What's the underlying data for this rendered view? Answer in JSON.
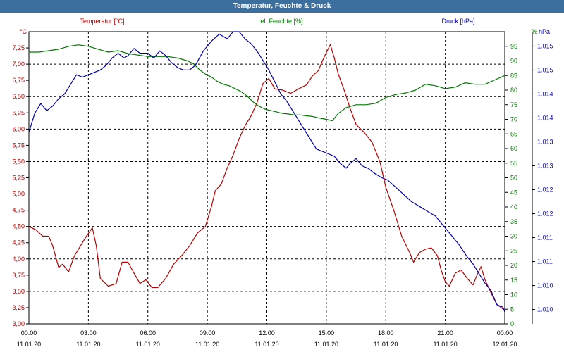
{
  "window": {
    "title": "Temperatur, Feuchte & Druck"
  },
  "colors": {
    "temperature": "#b40000",
    "humidity": "#007800",
    "pressure": "#0000aa",
    "grid": "#000000",
    "title_bar": "#3c6e9e"
  },
  "chart_data": {
    "type": "line",
    "title": "Temperatur, Feuchte & Druck",
    "legend": [
      {
        "key": "temperature",
        "label": "Temperatur [°C]"
      },
      {
        "key": "humidity",
        "label": "rel. Feuchte [%]"
      },
      {
        "key": "pressure",
        "label": "Druck [hPa]"
      }
    ],
    "x_axis": {
      "range_hours": [
        0,
        24
      ],
      "ticks": [
        {
          "h": 0,
          "time": "00:00",
          "date": "11.01.20"
        },
        {
          "h": 3,
          "time": "03:00",
          "date": "11.01.20"
        },
        {
          "h": 6,
          "time": "06:00",
          "date": "11.01.20"
        },
        {
          "h": 9,
          "time": "09:00",
          "date": "11.01.20"
        },
        {
          "h": 12,
          "time": "12:00",
          "date": "11.01.20"
        },
        {
          "h": 15,
          "time": "15:00",
          "date": "11.01.20"
        },
        {
          "h": 18,
          "time": "18:00",
          "date": "11.01.20"
        },
        {
          "h": 21,
          "time": "21:00",
          "date": "11.01.20"
        },
        {
          "h": 24,
          "time": "00:00",
          "date": "12.01.20"
        }
      ]
    },
    "left_axis": {
      "unit": "°C",
      "range": [
        3.0,
        7.5
      ],
      "ticks": [
        "3,00",
        "3,25",
        "3,50",
        "3,75",
        "4,00",
        "4,25",
        "4,50",
        "4,75",
        "5,00",
        "5,25",
        "5,50",
        "5,75",
        "6,00",
        "6,25",
        "6,50",
        "6,75",
        "7,00",
        "7,25"
      ]
    },
    "mid_axis": {
      "unit": "%",
      "range": [
        0,
        100
      ],
      "ticks": [
        "0",
        "5",
        "10",
        "15",
        "20",
        "25",
        "30",
        "35",
        "40",
        "45",
        "50",
        "55",
        "60",
        "65",
        "70",
        "75",
        "80",
        "85",
        "90",
        "95"
      ]
    },
    "right_axis": {
      "unit": "hPa",
      "range": [
        1009.7,
        1015.8
      ],
      "ticks": [
        {
          "v": 1010.0,
          "label": "1.010"
        },
        {
          "v": 1010.5,
          "label": "1.010"
        },
        {
          "v": 1011.0,
          "label": "1.011"
        },
        {
          "v": 1011.5,
          "label": "1.011"
        },
        {
          "v": 1012.0,
          "label": "1.012"
        },
        {
          "v": 1012.5,
          "label": "1.012"
        },
        {
          "v": 1013.0,
          "label": "1.013"
        },
        {
          "v": 1013.5,
          "label": "1.013"
        },
        {
          "v": 1014.0,
          "label": "1.014"
        },
        {
          "v": 1014.5,
          "label": "1.014"
        },
        {
          "v": 1015.0,
          "label": "1.015"
        },
        {
          "v": 1015.5,
          "label": "1.015"
        }
      ]
    },
    "series": [
      {
        "name": "temperature",
        "unit": "°C",
        "points": [
          [
            0,
            4.5
          ],
          [
            0.35,
            4.45
          ],
          [
            0.7,
            4.35
          ],
          [
            1.0,
            4.35
          ],
          [
            1.2,
            4.2
          ],
          [
            1.5,
            3.87
          ],
          [
            1.7,
            3.92
          ],
          [
            2.0,
            3.8
          ],
          [
            2.3,
            4.05
          ],
          [
            2.6,
            4.2
          ],
          [
            2.9,
            4.35
          ],
          [
            3.2,
            4.48
          ],
          [
            3.4,
            4.2
          ],
          [
            3.6,
            3.7
          ],
          [
            4.0,
            3.58
          ],
          [
            4.4,
            3.62
          ],
          [
            4.7,
            3.95
          ],
          [
            5.0,
            3.95
          ],
          [
            5.3,
            3.78
          ],
          [
            5.6,
            3.62
          ],
          [
            5.9,
            3.68
          ],
          [
            6.2,
            3.56
          ],
          [
            6.5,
            3.56
          ],
          [
            6.9,
            3.7
          ],
          [
            7.3,
            3.92
          ],
          [
            7.7,
            4.05
          ],
          [
            8.1,
            4.2
          ],
          [
            8.5,
            4.4
          ],
          [
            8.9,
            4.5
          ],
          [
            9.2,
            4.8
          ],
          [
            9.4,
            5.05
          ],
          [
            9.7,
            5.15
          ],
          [
            10.0,
            5.4
          ],
          [
            10.3,
            5.6
          ],
          [
            10.6,
            5.85
          ],
          [
            10.9,
            6.05
          ],
          [
            11.2,
            6.2
          ],
          [
            11.5,
            6.4
          ],
          [
            11.8,
            6.7
          ],
          [
            12.1,
            6.78
          ],
          [
            12.4,
            6.62
          ],
          [
            12.8,
            6.6
          ],
          [
            13.2,
            6.55
          ],
          [
            13.6,
            6.62
          ],
          [
            14.0,
            6.68
          ],
          [
            14.3,
            6.82
          ],
          [
            14.6,
            6.9
          ],
          [
            14.8,
            7.05
          ],
          [
            15.0,
            7.18
          ],
          [
            15.2,
            7.3
          ],
          [
            15.4,
            7.1
          ],
          [
            15.6,
            6.85
          ],
          [
            15.9,
            6.6
          ],
          [
            16.2,
            6.32
          ],
          [
            16.5,
            6.07
          ],
          [
            16.9,
            5.95
          ],
          [
            17.3,
            5.8
          ],
          [
            17.7,
            5.5
          ],
          [
            18.0,
            5.1
          ],
          [
            18.4,
            4.75
          ],
          [
            18.8,
            4.35
          ],
          [
            19.2,
            4.1
          ],
          [
            19.4,
            3.95
          ],
          [
            19.7,
            4.1
          ],
          [
            20.0,
            4.15
          ],
          [
            20.3,
            4.17
          ],
          [
            20.6,
            4.05
          ],
          [
            20.8,
            3.82
          ],
          [
            21.0,
            3.65
          ],
          [
            21.2,
            3.58
          ],
          [
            21.5,
            3.78
          ],
          [
            21.8,
            3.83
          ],
          [
            22.1,
            3.7
          ],
          [
            22.4,
            3.6
          ],
          [
            22.6,
            3.75
          ],
          [
            22.8,
            3.88
          ],
          [
            23.0,
            3.68
          ],
          [
            23.3,
            3.48
          ],
          [
            23.6,
            3.3
          ],
          [
            23.9,
            3.23
          ],
          [
            24.0,
            3.23
          ]
        ]
      },
      {
        "name": "humidity",
        "unit": "%",
        "points": [
          [
            0,
            93
          ],
          [
            0.5,
            93
          ],
          [
            1.0,
            93.5
          ],
          [
            1.5,
            94
          ],
          [
            2.0,
            95
          ],
          [
            2.5,
            95.5
          ],
          [
            3.0,
            95
          ],
          [
            3.5,
            94
          ],
          [
            4.0,
            93
          ],
          [
            4.5,
            93.5
          ],
          [
            5.0,
            92.5
          ],
          [
            5.5,
            92
          ],
          [
            6.0,
            91.5
          ],
          [
            6.5,
            91.5
          ],
          [
            7.0,
            91.5
          ],
          [
            7.5,
            91
          ],
          [
            8.0,
            90
          ],
          [
            8.3,
            89
          ],
          [
            8.6,
            87
          ],
          [
            8.9,
            85.5
          ],
          [
            9.2,
            84.5
          ],
          [
            9.5,
            83
          ],
          [
            9.8,
            82
          ],
          [
            10.1,
            81.5
          ],
          [
            10.4,
            80.5
          ],
          [
            10.7,
            79.5
          ],
          [
            11.0,
            78
          ],
          [
            11.3,
            76
          ],
          [
            11.6,
            74.5
          ],
          [
            11.9,
            73.5
          ],
          [
            12.2,
            73
          ],
          [
            12.5,
            72.5
          ],
          [
            12.8,
            72
          ],
          [
            13.1,
            71.8
          ],
          [
            13.4,
            71.5
          ],
          [
            13.7,
            71.5
          ],
          [
            14.0,
            71.2
          ],
          [
            14.3,
            71
          ],
          [
            14.6,
            70.5
          ],
          [
            15.0,
            70
          ],
          [
            15.3,
            69.5
          ],
          [
            15.6,
            72
          ],
          [
            16.0,
            74
          ],
          [
            16.5,
            75
          ],
          [
            17.0,
            75
          ],
          [
            17.5,
            75.5
          ],
          [
            18.0,
            77.5
          ],
          [
            18.5,
            78.5
          ],
          [
            19.0,
            79
          ],
          [
            19.5,
            80
          ],
          [
            20.0,
            82
          ],
          [
            20.5,
            81.5
          ],
          [
            21.0,
            80.5
          ],
          [
            21.5,
            81
          ],
          [
            22.0,
            82.5
          ],
          [
            22.5,
            82
          ],
          [
            23.0,
            82
          ],
          [
            23.5,
            83.5
          ],
          [
            24.0,
            85
          ]
        ]
      },
      {
        "name": "pressure",
        "unit": "hPa",
        "points": [
          [
            0,
            1013.7
          ],
          [
            0.3,
            1014.1
          ],
          [
            0.6,
            1014.3
          ],
          [
            0.9,
            1014.15
          ],
          [
            1.2,
            1014.25
          ],
          [
            1.5,
            1014.4
          ],
          [
            1.8,
            1014.5
          ],
          [
            2.1,
            1014.7
          ],
          [
            2.4,
            1014.9
          ],
          [
            2.7,
            1014.85
          ],
          [
            3.0,
            1014.9
          ],
          [
            3.3,
            1014.95
          ],
          [
            3.6,
            1015.0
          ],
          [
            3.9,
            1015.1
          ],
          [
            4.2,
            1015.25
          ],
          [
            4.5,
            1015.35
          ],
          [
            4.8,
            1015.25
          ],
          [
            5.0,
            1015.3
          ],
          [
            5.3,
            1015.45
          ],
          [
            5.6,
            1015.35
          ],
          [
            6.0,
            1015.35
          ],
          [
            6.3,
            1015.25
          ],
          [
            6.6,
            1015.4
          ],
          [
            6.9,
            1015.3
          ],
          [
            7.2,
            1015.15
          ],
          [
            7.5,
            1015.05
          ],
          [
            7.8,
            1015.0
          ],
          [
            8.1,
            1015.0
          ],
          [
            8.4,
            1015.1
          ],
          [
            8.8,
            1015.4
          ],
          [
            9.2,
            1015.6
          ],
          [
            9.6,
            1015.75
          ],
          [
            10.0,
            1015.65
          ],
          [
            10.3,
            1015.8
          ],
          [
            10.6,
            1015.8
          ],
          [
            10.9,
            1015.65
          ],
          [
            11.2,
            1015.55
          ],
          [
            11.5,
            1015.4
          ],
          [
            11.8,
            1015.2
          ],
          [
            12.1,
            1015.0
          ],
          [
            12.4,
            1014.75
          ],
          [
            12.7,
            1014.5
          ],
          [
            13.0,
            1014.35
          ],
          [
            13.3,
            1014.15
          ],
          [
            13.6,
            1013.95
          ],
          [
            13.9,
            1013.75
          ],
          [
            14.2,
            1013.55
          ],
          [
            14.5,
            1013.35
          ],
          [
            14.8,
            1013.3
          ],
          [
            15.1,
            1013.25
          ],
          [
            15.4,
            1013.2
          ],
          [
            15.7,
            1013.05
          ],
          [
            16.0,
            1012.95
          ],
          [
            16.2,
            1013.05
          ],
          [
            16.5,
            1013.15
          ],
          [
            16.8,
            1013.0
          ],
          [
            17.1,
            1012.95
          ],
          [
            17.4,
            1012.85
          ],
          [
            17.8,
            1012.75
          ],
          [
            18.1,
            1012.7
          ],
          [
            18.5,
            1012.55
          ],
          [
            18.9,
            1012.4
          ],
          [
            19.3,
            1012.25
          ],
          [
            19.7,
            1012.15
          ],
          [
            20.1,
            1012.05
          ],
          [
            20.5,
            1011.95
          ],
          [
            20.9,
            1011.75
          ],
          [
            21.3,
            1011.55
          ],
          [
            21.7,
            1011.35
          ],
          [
            22.1,
            1011.1
          ],
          [
            22.4,
            1010.95
          ],
          [
            22.7,
            1010.75
          ],
          [
            23.0,
            1010.55
          ],
          [
            23.3,
            1010.4
          ],
          [
            23.6,
            1010.1
          ],
          [
            23.9,
            1010.05
          ],
          [
            24.0,
            1009.95
          ]
        ]
      }
    ]
  }
}
